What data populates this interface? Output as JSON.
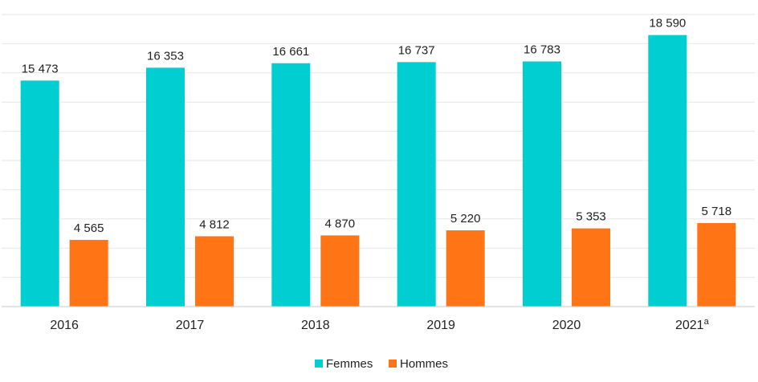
{
  "chart_data": {
    "type": "bar",
    "title": "",
    "xlabel": "",
    "ylabel": "",
    "ylim": [
      0,
      20000
    ],
    "grid": true,
    "legend_position": "bottom-center",
    "categories": [
      "2016",
      "2017",
      "2018",
      "2019",
      "2020",
      "2021"
    ],
    "category_suffix": [
      "",
      "",
      "",
      "",
      "",
      "a"
    ],
    "series": [
      {
        "name": "Femmes",
        "color": "#00CED1",
        "values": [
          15473,
          16353,
          16661,
          16737,
          16783,
          18590
        ],
        "labels": [
          "15 473",
          "16 353",
          "16 661",
          "16 737",
          "16 783",
          "18 590"
        ]
      },
      {
        "name": "Hommes",
        "color": "#FF7414",
        "values": [
          4565,
          4812,
          4870,
          5220,
          5353,
          5718
        ],
        "labels": [
          "4 565",
          "4 812",
          "4 870",
          "5 220",
          "5 353",
          "5 718"
        ]
      }
    ]
  }
}
